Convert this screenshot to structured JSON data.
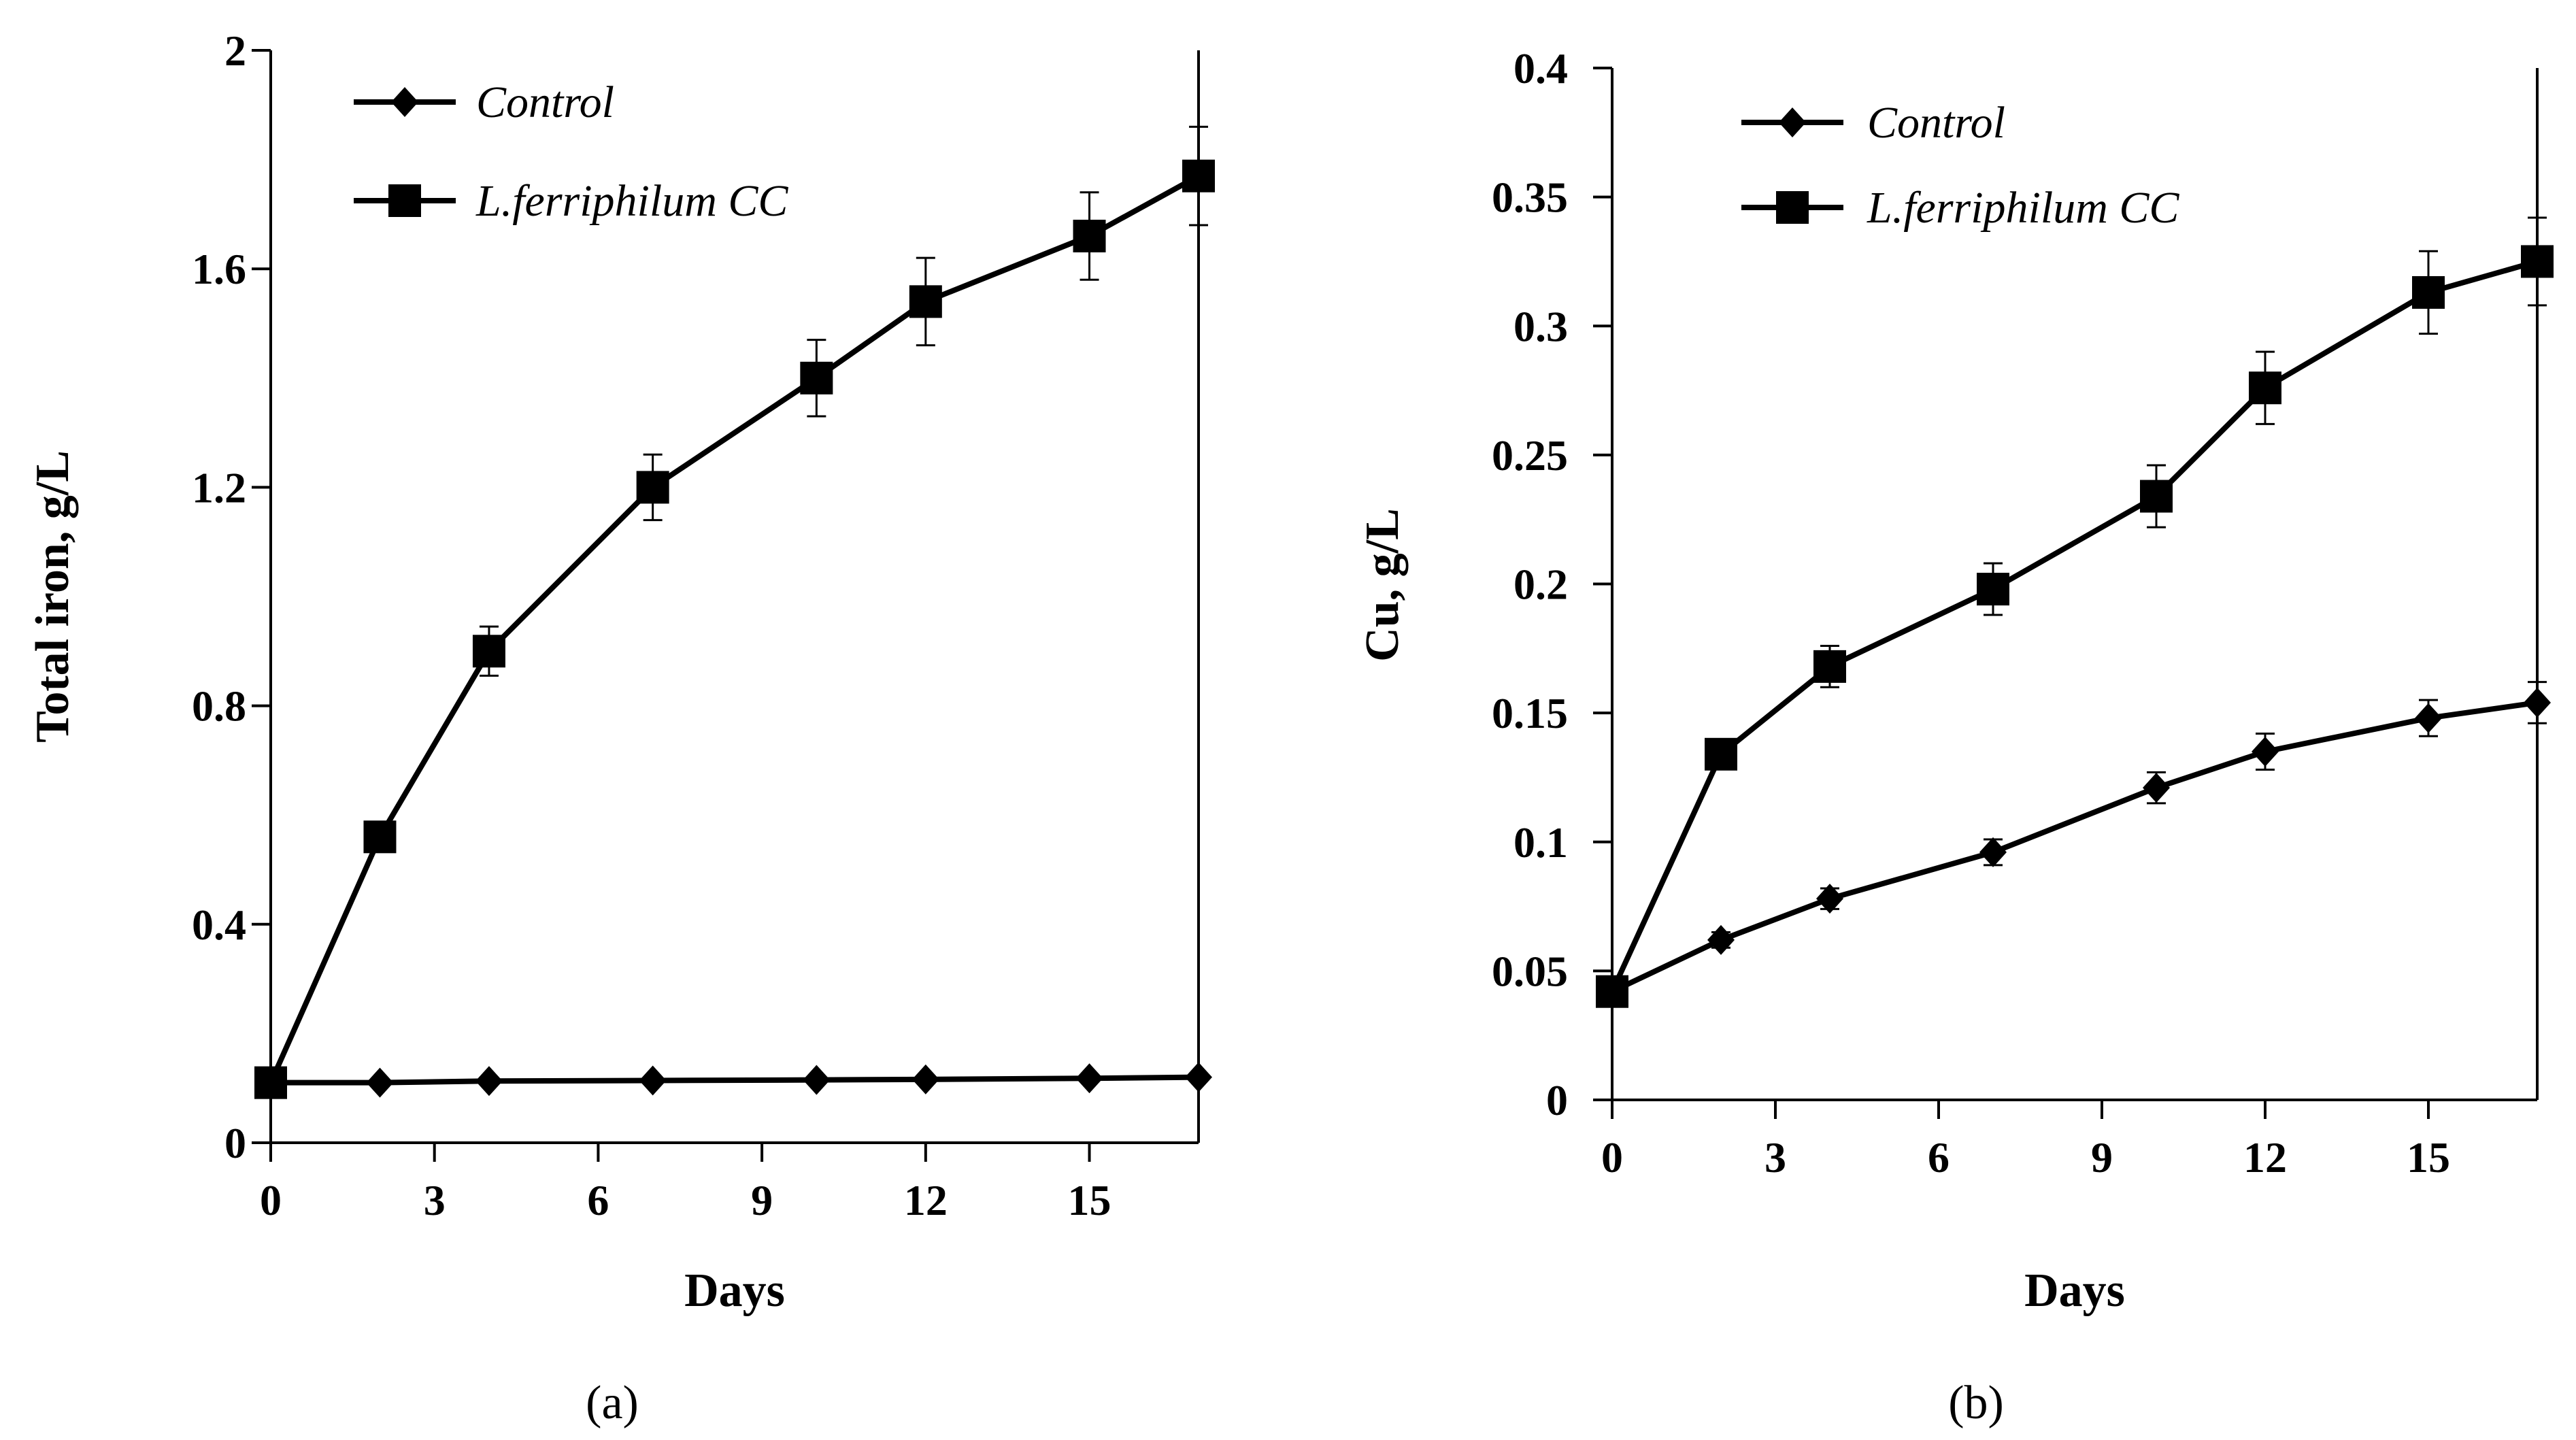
{
  "chart_data": [
    {
      "type": "line",
      "panel_label": "(a)",
      "xlabel": "Days",
      "ylabel": "Total iron, g/L",
      "xlim": [
        0,
        17
      ],
      "ylim": [
        0,
        2
      ],
      "xticks": [
        0,
        3,
        6,
        9,
        12,
        15
      ],
      "xtick_labels": [
        "0",
        "3",
        "6",
        "9",
        "12",
        "15"
      ],
      "yticks": [
        0,
        0.4,
        0.8,
        1.2,
        1.6,
        2
      ],
      "ytick_labels": [
        "0",
        "0.4",
        "0.8",
        "1.2",
        "1.6",
        "2"
      ],
      "grid": false,
      "legend_position": "top-left",
      "x": [
        0,
        2,
        4,
        7,
        10,
        12,
        15,
        17
      ],
      "series": [
        {
          "name": "Control",
          "marker": "diamond",
          "color": "#000000",
          "values": [
            0.11,
            0.11,
            0.113,
            0.114,
            0.115,
            0.116,
            0.118,
            0.12
          ],
          "error": [
            0,
            0,
            0,
            0,
            0,
            0,
            0,
            0
          ]
        },
        {
          "name": "L.ferriphilum CC",
          "marker": "square",
          "color": "#000000",
          "values": [
            0.11,
            0.56,
            0.9,
            1.2,
            1.4,
            1.54,
            1.66,
            1.77
          ],
          "error": [
            0,
            0.02,
            0.045,
            0.06,
            0.07,
            0.08,
            0.08,
            0.09
          ]
        }
      ]
    },
    {
      "type": "line",
      "panel_label": "(b)",
      "xlabel": "Days",
      "ylabel": "Cu, g/L",
      "xlim": [
        0,
        17
      ],
      "ylim": [
        0,
        0.4
      ],
      "xticks": [
        0,
        3,
        6,
        9,
        12,
        15
      ],
      "xtick_labels": [
        "0",
        "3",
        "6",
        "9",
        "12",
        "15"
      ],
      "yticks": [
        0,
        0.05,
        0.1,
        0.15,
        0.2,
        0.25,
        0.3,
        0.35,
        0.4
      ],
      "ytick_labels": [
        "0",
        "0.05",
        "0.1",
        "0.15",
        "0.2",
        "0.25",
        "0.3",
        "0.35",
        "0.4"
      ],
      "grid": false,
      "legend_position": "top-left",
      "x": [
        0,
        2,
        4,
        7,
        10,
        12,
        15,
        17
      ],
      "series": [
        {
          "name": "Control",
          "marker": "diamond",
          "color": "#000000",
          "values": [
            0.042,
            0.062,
            0.078,
            0.096,
            0.121,
            0.135,
            0.148,
            0.154
          ],
          "error": [
            0.002,
            0.003,
            0.004,
            0.005,
            0.006,
            0.007,
            0.007,
            0.008
          ]
        },
        {
          "name": "L.ferriphilum CC",
          "marker": "square",
          "color": "#000000",
          "values": [
            0.042,
            0.134,
            0.168,
            0.198,
            0.234,
            0.276,
            0.313,
            0.325
          ],
          "error": [
            0.002,
            0.005,
            0.008,
            0.01,
            0.012,
            0.014,
            0.016,
            0.017
          ]
        }
      ]
    }
  ]
}
